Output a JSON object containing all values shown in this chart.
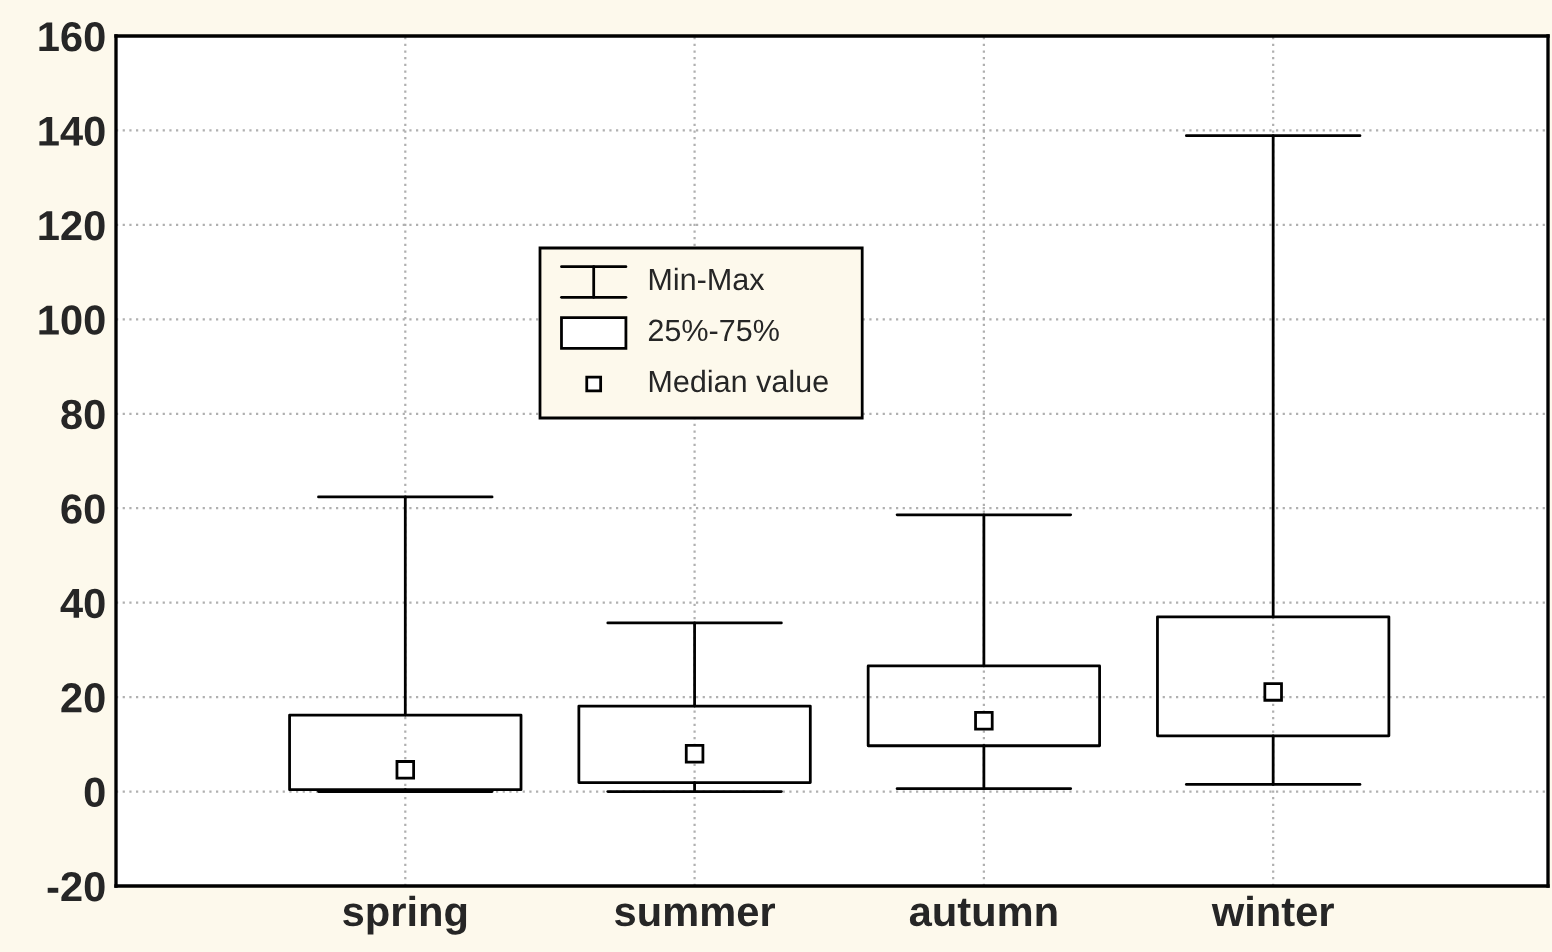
{
  "chart_data": {
    "type": "box",
    "categories": [
      "spring",
      "summer",
      "autumn",
      "winter"
    ],
    "boxes": [
      {
        "low": 0,
        "q1": 0.4,
        "median": 4.6,
        "q3": 16.2,
        "high": 62.4
      },
      {
        "low": 0,
        "q1": 1.9,
        "median": 8.0,
        "q3": 18.1,
        "high": 35.7
      },
      {
        "low": 0.6,
        "q1": 9.7,
        "median": 15.0,
        "q3": 26.6,
        "high": 58.6
      },
      {
        "low": 1.5,
        "q1": 11.8,
        "median": 21.1,
        "q3": 37.0,
        "high": 138.9
      }
    ],
    "ylim": [
      -20,
      160
    ],
    "yticks": [
      -20,
      0,
      20,
      40,
      60,
      80,
      100,
      120,
      140,
      160
    ],
    "grid": true,
    "annotations": [
      "Min-Max",
      "25%-75%",
      "Median value"
    ]
  }
}
